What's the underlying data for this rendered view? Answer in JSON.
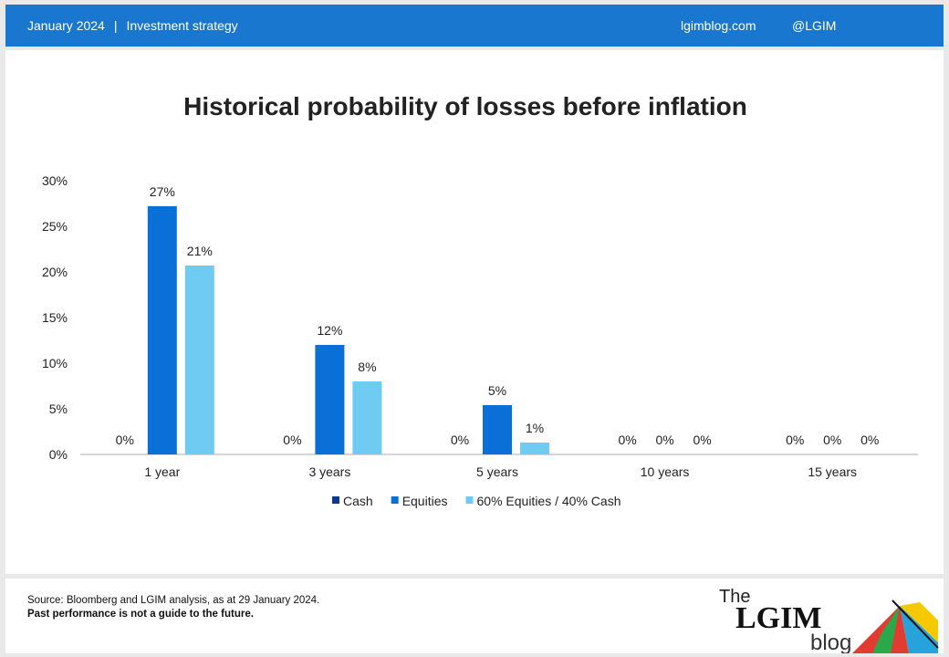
{
  "header": {
    "date": "January 2024",
    "separator": "|",
    "category": "Investment strategy",
    "site": "lgimblog.com",
    "handle": "@LGIM"
  },
  "footer": {
    "source": "Source: Bloomberg and LGIM analysis, as at 29 January 2024.",
    "disclaimer": "Past performance is not a guide to the future.",
    "logo": {
      "the": "The",
      "lgim": "LGIM",
      "blog": "blog"
    }
  },
  "colors": {
    "header_bg": "#1a77cf",
    "cash": "#0b3a8a",
    "equities": "#0a6fd6",
    "mix": "#6fcbf2"
  },
  "chart_data": {
    "type": "bar",
    "title": "Historical probability of losses before inflation",
    "categories": [
      "1 year",
      "3 years",
      "5 years",
      "10 years",
      "15 years"
    ],
    "series": [
      {
        "name": "Cash",
        "values": [
          0,
          0,
          0,
          0,
          0
        ],
        "labels": [
          "0%",
          "0%",
          "0%",
          "0%",
          "0%"
        ],
        "color": "#0b3a8a"
      },
      {
        "name": "Equities",
        "values": [
          27.2,
          12.0,
          5.4,
          0,
          0
        ],
        "labels": [
          "27%",
          "12%",
          "5%",
          "0%",
          "0%"
        ],
        "color": "#0a6fd6"
      },
      {
        "name": "60% Equities / 40% Cash",
        "values": [
          20.7,
          8.0,
          1.3,
          0,
          0
        ],
        "labels": [
          "21%",
          "8%",
          "1%",
          "0%",
          "0%"
        ],
        "color": "#6fcbf2"
      }
    ],
    "ylim": [
      0,
      30
    ],
    "yticks": [
      "0%",
      "5%",
      "10%",
      "15%",
      "20%",
      "25%",
      "30%"
    ],
    "legend": "bottom",
    "grid": false
  }
}
